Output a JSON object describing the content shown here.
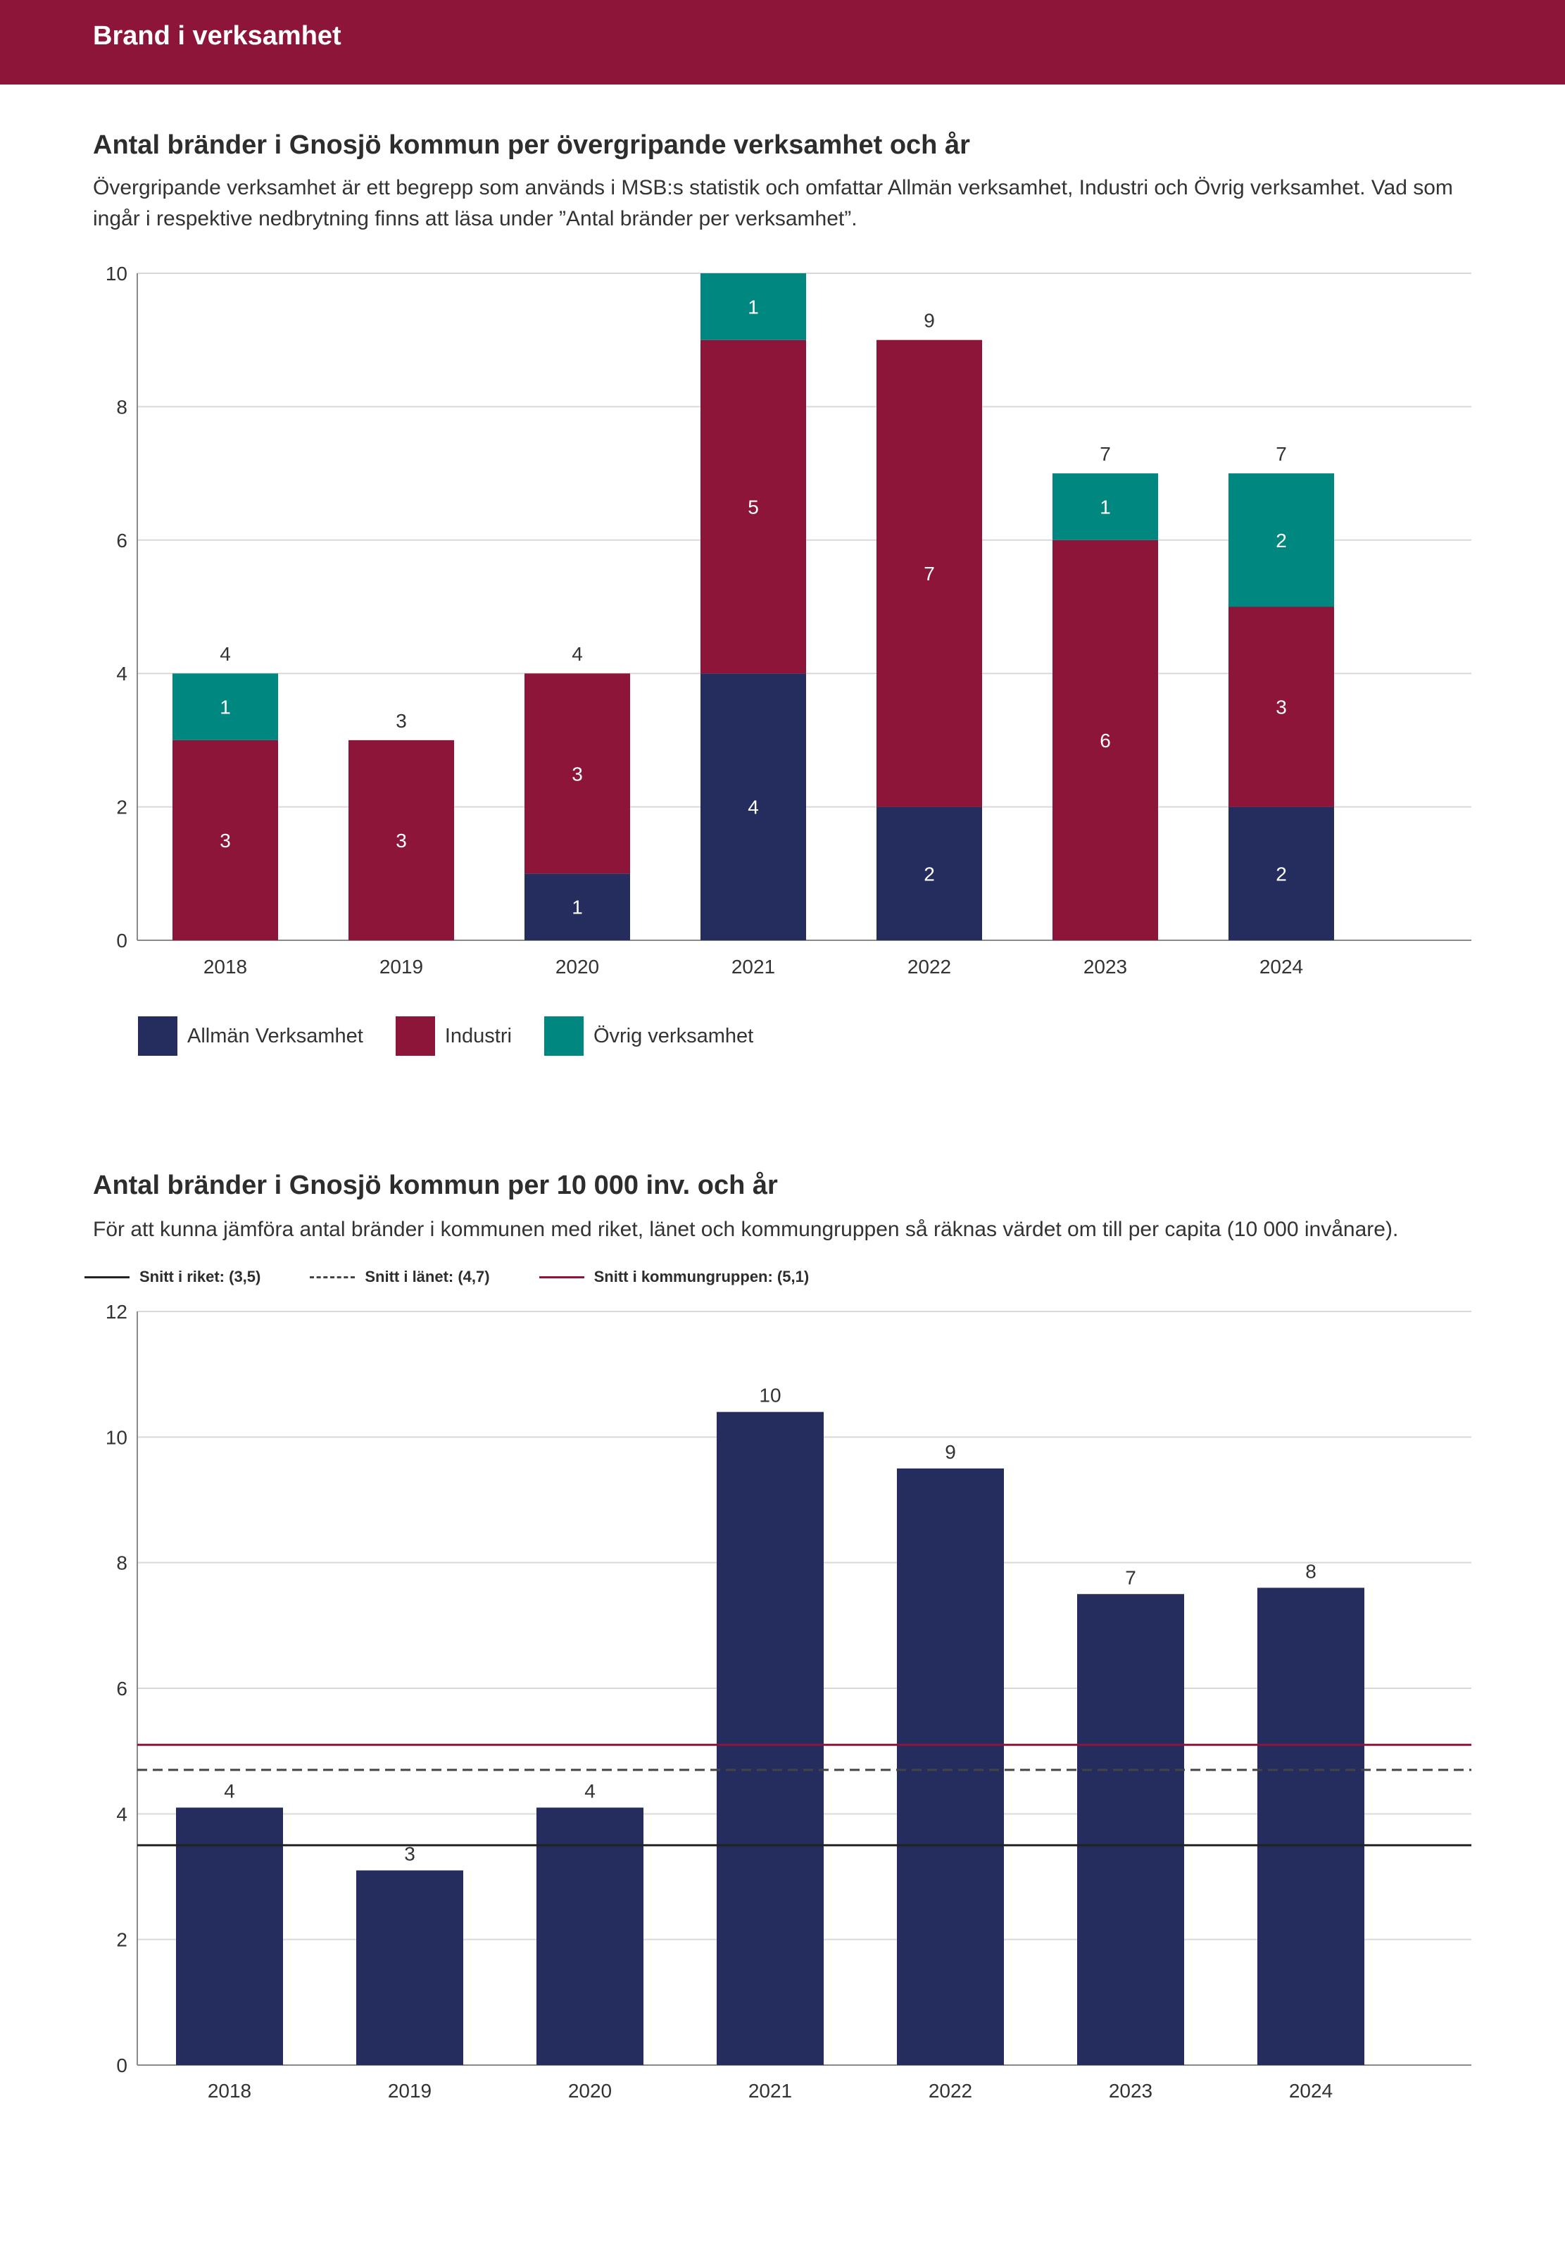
{
  "header": {
    "title": "Brand i verksamhet"
  },
  "section1": {
    "title": "Antal bränder i Gnosjö kommun per övergripande verksamhet och år",
    "description": "Övergripande verksamhet är ett begrepp som används i MSB:s statistik och omfattar Allmän verksamhet, Industri och Övrig verksamhet. Vad som ingår i respektive nedbrytning finns att läsa under ”Antal bränder per verksamhet”."
  },
  "section2": {
    "title": "Antal bränder i Gnosjö kommun per 10 000 inv. och år",
    "description": "För att kunna jämföra antal bränder i kommunen med riket, länet och kommungruppen så räknas värdet om till per capita (10 000 invånare)."
  },
  "colors": {
    "header": "#8c1539",
    "allman": "#252c5e",
    "industri": "#8c1539",
    "ovrig": "#008880",
    "bar": "#252c5e",
    "riket": "#222222",
    "lanet": "#444444",
    "kommungrupp": "#8c1539",
    "grid": "#d9d9d9"
  },
  "chart_data": [
    {
      "type": "bar",
      "stacked": true,
      "title": "Antal bränder i Gnosjö kommun per övergripande verksamhet och år",
      "categories": [
        "2018",
        "2019",
        "2020",
        "2021",
        "2022",
        "2023",
        "2024"
      ],
      "series": [
        {
          "name": "Allmän Verksamhet",
          "values": [
            0,
            0,
            1,
            4,
            2,
            0,
            2
          ]
        },
        {
          "name": "Industri",
          "values": [
            3,
            3,
            3,
            5,
            7,
            6,
            3
          ]
        },
        {
          "name": "Övrig verksamhet",
          "values": [
            1,
            0,
            0,
            1,
            0,
            1,
            2
          ]
        }
      ],
      "segment_labels": [
        [
          "",
          "",
          "1",
          "4",
          "2",
          "",
          "2"
        ],
        [
          "3",
          "3",
          "3",
          "5",
          "7",
          "6",
          "3"
        ],
        [
          "1",
          "",
          "",
          "1",
          "",
          "1",
          "2"
        ]
      ],
      "totals": [
        "4",
        "3",
        "4",
        "",
        "9",
        "7",
        "7"
      ],
      "yticks": [
        "0",
        "2",
        "4",
        "6",
        "8",
        "10"
      ],
      "ylim": [
        0,
        10
      ],
      "legend": [
        "Allmän Verksamhet",
        "Industri",
        "Övrig verksamhet"
      ],
      "xlabel": "",
      "ylabel": "",
      "grid": true
    },
    {
      "type": "bar",
      "title": "Antal bränder i Gnosjö kommun per 10 000 inv. och år",
      "categories": [
        "2018",
        "2019",
        "2020",
        "2021",
        "2022",
        "2023",
        "2024"
      ],
      "values": [
        4.1,
        3.1,
        4.1,
        10.4,
        9.5,
        7.5,
        7.6
      ],
      "value_labels": [
        "4",
        "3",
        "4",
        "10",
        "9",
        "7",
        "8"
      ],
      "yticks": [
        "0",
        "2",
        "4",
        "6",
        "8",
        "10",
        "12"
      ],
      "ylim": [
        0,
        12
      ],
      "reference_lines": [
        {
          "label": "Snitt i riket: (3,5)",
          "value": 3.5,
          "style": "solid"
        },
        {
          "label": "Snitt i länet: (4,7)",
          "value": 4.7,
          "style": "dashed"
        },
        {
          "label": "Snitt i kommungruppen: (5,1)",
          "value": 5.1,
          "style": "solid-red"
        }
      ],
      "xlabel": "",
      "ylabel": "",
      "grid": true
    }
  ]
}
